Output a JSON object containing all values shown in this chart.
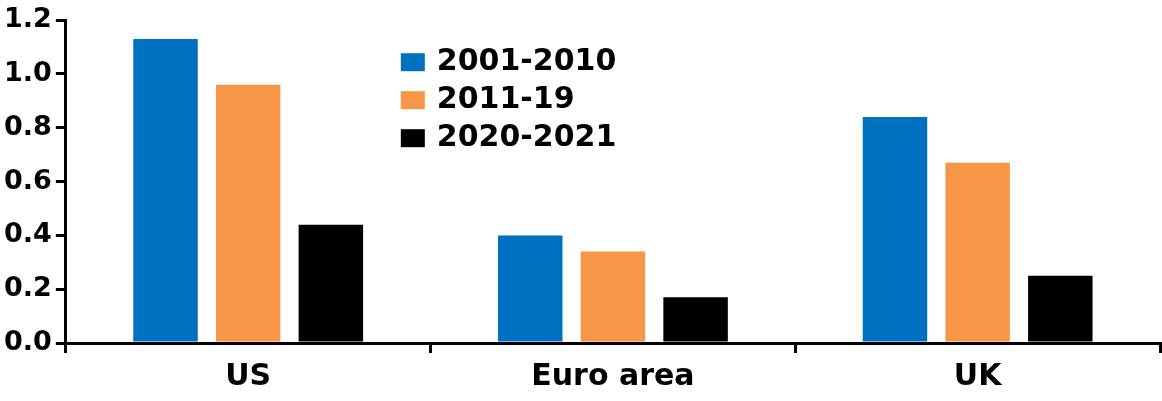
{
  "chart_data": {
    "type": "bar",
    "categories": [
      "US",
      "Euro area",
      "UK"
    ],
    "series": [
      {
        "name": "2001-2010",
        "color": "#0070c0",
        "values": [
          1.13,
          0.4,
          0.84
        ]
      },
      {
        "name": "2011-19",
        "color": "#f79646",
        "values": [
          0.96,
          0.34,
          0.67
        ]
      },
      {
        "name": "2020-2021",
        "color": "#000000",
        "values": [
          0.44,
          0.17,
          0.25
        ]
      }
    ],
    "ylim": [
      0,
      1.2
    ],
    "yticks": [
      {
        "value": 0,
        "label": "0.0"
      },
      {
        "value": 0.2,
        "label": "0.2"
      },
      {
        "value": 0.4,
        "label": "0.4"
      },
      {
        "value": 0.6,
        "label": "0.6"
      },
      {
        "value": 0.8,
        "label": "0.8"
      },
      {
        "value": 1.0,
        "label": "1.0"
      },
      {
        "value": 1.2,
        "label": "1.2"
      }
    ],
    "grid": false,
    "legend": "top"
  }
}
